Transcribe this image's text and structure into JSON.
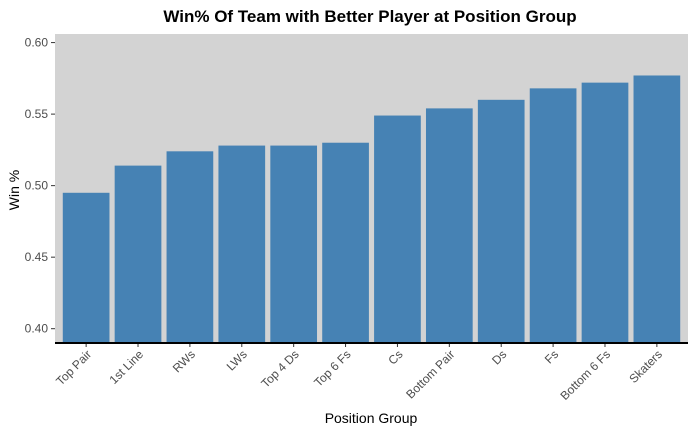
{
  "chart_data": {
    "type": "bar",
    "title": "Win% Of Team with Better Player at Position Group",
    "xlabel": "Position Group",
    "ylabel": "Win %",
    "categories": [
      "Top Pair",
      "1st Line",
      "RWs",
      "LWs",
      "Top 4 Ds",
      "Top 6 Fs",
      "Cs",
      "Bottom Pair",
      "Ds",
      "Fs",
      "Bottom 6 Fs",
      "Skaters"
    ],
    "values": [
      0.495,
      0.514,
      0.524,
      0.528,
      0.528,
      0.53,
      0.549,
      0.554,
      0.56,
      0.568,
      0.572,
      0.577
    ],
    "ylim": [
      0.39,
      0.606
    ],
    "yticks": [
      "0.40",
      "0.45",
      "0.50",
      "0.55",
      "0.60"
    ],
    "grid": false,
    "legend": "none",
    "colors": {
      "bar": "#4682B4",
      "panel": "#D3D3D3",
      "axis": "#000000"
    }
  }
}
